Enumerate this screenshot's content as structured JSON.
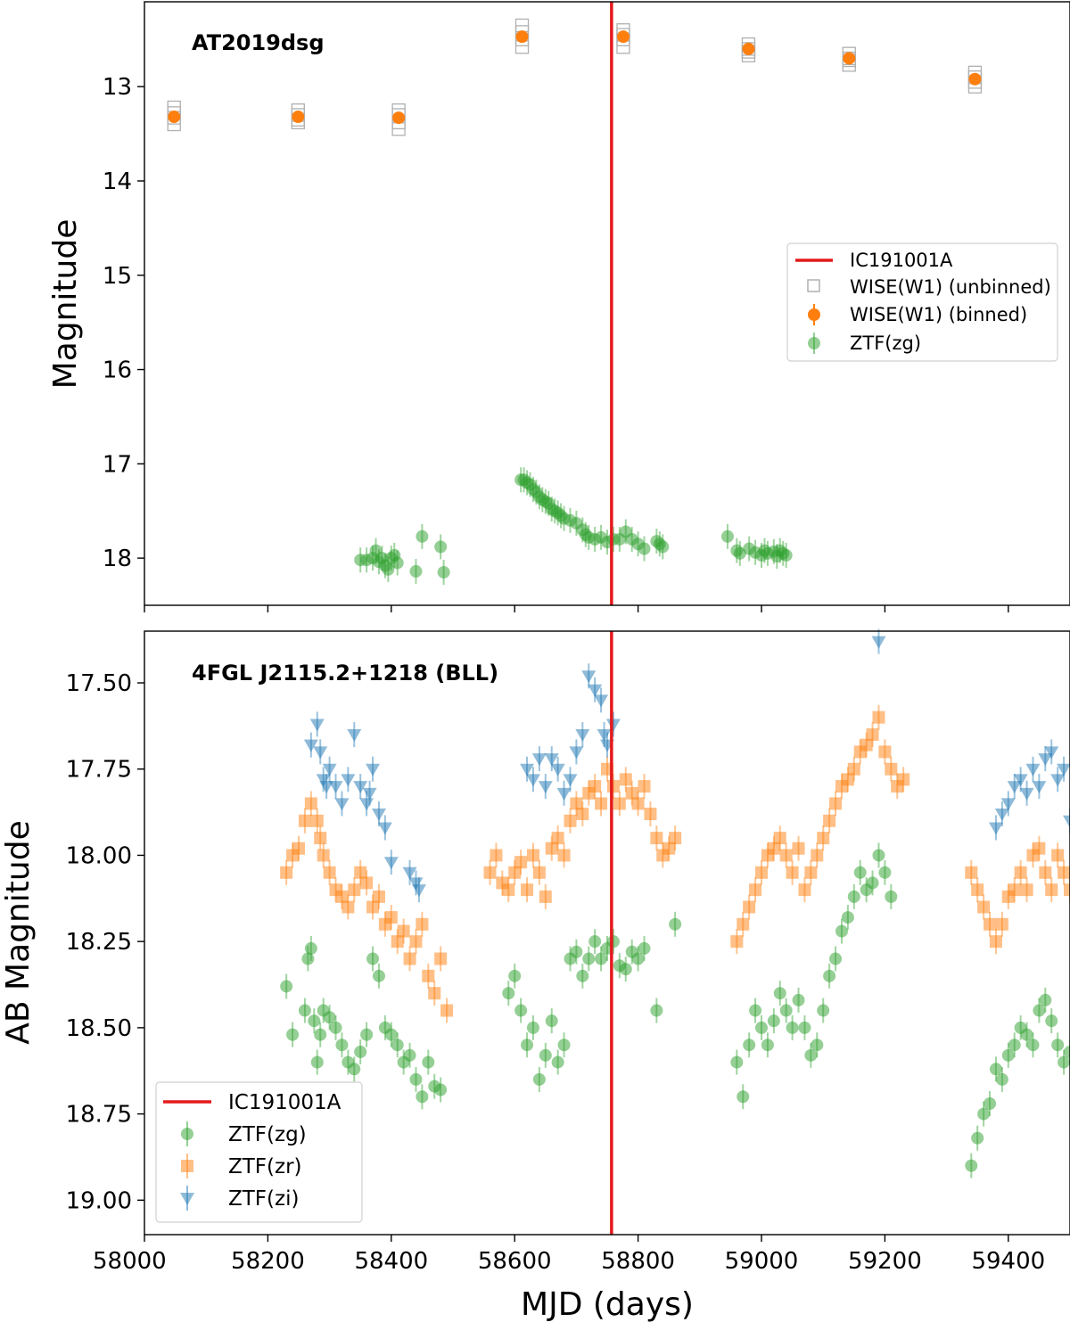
{
  "chart_data": [
    {
      "type": "scatter",
      "title": "AT2019dsg",
      "xlabel": "",
      "ylabel": "Magnitude",
      "xlim": [
        58000,
        59500
      ],
      "ylim": [
        18.5,
        12.1
      ],
      "y_inverted": true,
      "yticks": [
        13,
        14,
        15,
        16,
        17,
        18
      ],
      "ytick_labels": [
        "13",
        "14",
        "15",
        "16",
        "17",
        "18"
      ],
      "xticks": [
        58000,
        58200,
        58400,
        58600,
        58800,
        59000,
        59200,
        59400
      ],
      "legend_position": "center-right",
      "vline": {
        "name": "IC191001A",
        "x": 58757,
        "color": "#e41a1c"
      },
      "series": [
        {
          "name": "WISE(W1) (unbinned)",
          "marker": "square-open",
          "color": "#b0b0b0",
          "x": [
            58048,
            58048,
            58048,
            58048,
            58249,
            58249,
            58249,
            58249,
            58412,
            58412,
            58412,
            58412,
            58612,
            58612,
            58612,
            58612,
            58776,
            58776,
            58776,
            58776,
            58979,
            58979,
            58979,
            58979,
            59142,
            59142,
            59142,
            59142,
            59346,
            59346,
            59346,
            59346
          ],
          "y": [
            13.22,
            13.28,
            13.33,
            13.4,
            13.25,
            13.3,
            13.35,
            13.38,
            13.25,
            13.3,
            13.38,
            13.45,
            12.35,
            12.42,
            12.5,
            12.58,
            12.4,
            12.45,
            12.5,
            12.58,
            12.55,
            12.6,
            12.63,
            12.67,
            12.65,
            12.7,
            12.72,
            12.77,
            12.85,
            12.9,
            12.95,
            13.0
          ]
        },
        {
          "name": "WISE(W1) (binned)",
          "marker": "circle",
          "color": "#ff7f0e",
          "x": [
            58048,
            58249,
            58412,
            58612,
            58776,
            58979,
            59142,
            59346
          ],
          "y": [
            13.32,
            13.32,
            13.33,
            12.47,
            12.47,
            12.6,
            12.7,
            12.92
          ]
        },
        {
          "name": "ZTF(zg)",
          "marker": "circle",
          "color": "#2ca02c",
          "x": [
            58350,
            58360,
            58370,
            58375,
            58380,
            58385,
            58390,
            58395,
            58400,
            58405,
            58410,
            58440,
            58450,
            58480,
            58485,
            58610,
            58615,
            58620,
            58625,
            58630,
            58635,
            58640,
            58645,
            58650,
            58655,
            58660,
            58665,
            58670,
            58675,
            58680,
            58690,
            58700,
            58710,
            58715,
            58720,
            58730,
            58740,
            58750,
            58760,
            58770,
            58780,
            58790,
            58800,
            58810,
            58830,
            58835,
            58840,
            58945,
            58960,
            58965,
            58980,
            58990,
            59000,
            59005,
            59010,
            59020,
            59025,
            59030,
            59035,
            59040
          ],
          "y": [
            18.02,
            18.02,
            18.0,
            17.92,
            18.04,
            18.0,
            18.08,
            18.12,
            18.0,
            17.97,
            18.05,
            18.14,
            17.77,
            17.88,
            18.15,
            17.17,
            17.17,
            17.2,
            17.22,
            17.27,
            17.3,
            17.35,
            17.38,
            17.4,
            17.42,
            17.48,
            17.5,
            17.52,
            17.55,
            17.58,
            17.6,
            17.63,
            17.7,
            17.75,
            17.78,
            17.8,
            17.78,
            17.83,
            17.8,
            17.8,
            17.72,
            17.8,
            17.85,
            17.9,
            17.82,
            17.85,
            17.88,
            17.77,
            17.92,
            17.95,
            17.9,
            17.94,
            17.97,
            17.92,
            17.95,
            17.93,
            17.98,
            17.92,
            17.95,
            17.97
          ]
        }
      ]
    },
    {
      "type": "scatter",
      "title": "4FGL J2115.2+1218 (BLL)",
      "xlabel": "MJD (days)",
      "ylabel": "AB Magnitude",
      "xlim": [
        58000,
        59500
      ],
      "ylim": [
        19.1,
        17.35
      ],
      "y_inverted": true,
      "yticks": [
        17.5,
        17.75,
        18.0,
        18.25,
        18.5,
        18.75,
        19.0
      ],
      "ytick_labels": [
        "17.50",
        "17.75",
        "18.00",
        "18.25",
        "18.50",
        "18.75",
        "19.00"
      ],
      "xticks": [
        58000,
        58200,
        58400,
        58600,
        58800,
        59000,
        59200,
        59400
      ],
      "xtick_labels": [
        "58000",
        "58200",
        "58400",
        "58600",
        "58800",
        "59000",
        "59200",
        "59400"
      ],
      "legend_position": "lower-left",
      "vline": {
        "name": "IC191001A",
        "x": 58757,
        "color": "#e41a1c"
      },
      "series": [
        {
          "name": "ZTF(zg)",
          "marker": "circle",
          "color": "#2ca02c",
          "x": [
            58230,
            58240,
            58260,
            58265,
            58270,
            58275,
            58280,
            58285,
            58290,
            58300,
            58310,
            58320,
            58330,
            58340,
            58350,
            58360,
            58370,
            58380,
            58390,
            58400,
            58410,
            58420,
            58430,
            58440,
            58450,
            58460,
            58470,
            58480,
            58590,
            58600,
            58610,
            58620,
            58630,
            58640,
            58650,
            58660,
            58670,
            58680,
            58690,
            58700,
            58710,
            58720,
            58730,
            58740,
            58750,
            58760,
            58770,
            58780,
            58790,
            58800,
            58810,
            58830,
            58860,
            58960,
            58970,
            58980,
            58990,
            59000,
            59010,
            59020,
            59030,
            59040,
            59050,
            59060,
            59070,
            59080,
            59090,
            59100,
            59110,
            59120,
            59130,
            59140,
            59150,
            59160,
            59170,
            59180,
            59190,
            59200,
            59210,
            59340,
            59350,
            59360,
            59370,
            59380,
            59390,
            59400,
            59410,
            59420,
            59430,
            59440,
            59450,
            59460,
            59470,
            59480,
            59490,
            59500
          ],
          "y": [
            18.38,
            18.52,
            18.45,
            18.3,
            18.27,
            18.48,
            18.6,
            18.52,
            18.45,
            18.47,
            18.5,
            18.55,
            18.6,
            18.62,
            18.57,
            18.52,
            18.3,
            18.35,
            18.5,
            18.52,
            18.55,
            18.6,
            18.58,
            18.65,
            18.7,
            18.6,
            18.67,
            18.68,
            18.4,
            18.35,
            18.45,
            18.55,
            18.5,
            18.65,
            18.58,
            18.48,
            18.6,
            18.55,
            18.3,
            18.28,
            18.35,
            18.3,
            18.25,
            18.3,
            18.27,
            18.25,
            18.32,
            18.33,
            18.28,
            18.3,
            18.27,
            18.45,
            18.2,
            18.6,
            18.7,
            18.55,
            18.45,
            18.5,
            18.55,
            18.48,
            18.4,
            18.45,
            18.5,
            18.42,
            18.5,
            18.58,
            18.55,
            18.45,
            18.35,
            18.3,
            18.22,
            18.18,
            18.12,
            18.05,
            18.1,
            18.08,
            18.0,
            18.05,
            18.12,
            18.9,
            18.82,
            18.75,
            18.72,
            18.62,
            18.65,
            18.58,
            18.55,
            18.5,
            18.52,
            18.55,
            18.45,
            18.42,
            18.48,
            18.55,
            18.6,
            18.57
          ]
        },
        {
          "name": "ZTF(zr)",
          "marker": "square",
          "color": "#ff7f0e",
          "x": [
            58230,
            58240,
            58250,
            58260,
            58270,
            58280,
            58285,
            58290,
            58300,
            58310,
            58320,
            58330,
            58340,
            58350,
            58360,
            58370,
            58380,
            58390,
            58400,
            58410,
            58420,
            58430,
            58440,
            58450,
            58460,
            58470,
            58480,
            58490,
            58560,
            58570,
            58580,
            58590,
            58600,
            58610,
            58620,
            58630,
            58640,
            58650,
            58660,
            58670,
            58680,
            58690,
            58700,
            58710,
            58720,
            58730,
            58740,
            58750,
            58760,
            58770,
            58780,
            58790,
            58800,
            58810,
            58820,
            58830,
            58840,
            58850,
            58860,
            58960,
            58970,
            58980,
            58990,
            59000,
            59010,
            59020,
            59030,
            59040,
            59050,
            59060,
            59070,
            59080,
            59090,
            59100,
            59110,
            59120,
            59130,
            59140,
            59150,
            59160,
            59170,
            59180,
            59190,
            59200,
            59210,
            59220,
            59230,
            59340,
            59350,
            59360,
            59370,
            59380,
            59390,
            59400,
            59410,
            59420,
            59430,
            59440,
            59450,
            59460,
            59470,
            59480,
            59490,
            59500
          ],
          "y": [
            18.05,
            18.0,
            17.98,
            17.9,
            17.85,
            17.9,
            17.95,
            18.0,
            18.05,
            18.1,
            18.12,
            18.15,
            18.1,
            18.05,
            18.08,
            18.15,
            18.12,
            18.2,
            18.18,
            18.25,
            18.22,
            18.3,
            18.25,
            18.2,
            18.35,
            18.4,
            18.3,
            18.45,
            18.05,
            18.0,
            18.08,
            18.1,
            18.05,
            18.02,
            18.1,
            18.0,
            18.05,
            18.12,
            17.98,
            17.95,
            18.0,
            17.9,
            17.85,
            17.88,
            17.82,
            17.8,
            17.85,
            17.75,
            17.8,
            17.85,
            17.78,
            17.82,
            17.85,
            17.8,
            17.88,
            17.95,
            18.0,
            17.98,
            17.95,
            18.25,
            18.2,
            18.15,
            18.1,
            18.05,
            18.0,
            17.98,
            17.95,
            18.0,
            18.05,
            17.98,
            18.1,
            18.05,
            18.0,
            17.95,
            17.9,
            17.85,
            17.8,
            17.78,
            17.75,
            17.7,
            17.68,
            17.65,
            17.6,
            17.7,
            17.75,
            17.8,
            17.78,
            18.05,
            18.1,
            18.15,
            18.2,
            18.25,
            18.2,
            18.12,
            18.1,
            18.05,
            18.1,
            18.0,
            17.98,
            18.05,
            18.1,
            18.0,
            18.05,
            18.1
          ]
        },
        {
          "name": "ZTF(zi)",
          "marker": "triangle-down",
          "color": "#1f77b4",
          "x": [
            58270,
            58280,
            58285,
            58290,
            58295,
            58300,
            58310,
            58320,
            58330,
            58340,
            58350,
            58360,
            58365,
            58370,
            58380,
            58390,
            58400,
            58430,
            58440,
            58445,
            58620,
            58630,
            58640,
            58650,
            58660,
            58670,
            58680,
            58690,
            58700,
            58710,
            58720,
            58730,
            58740,
            58745,
            58750,
            58760,
            59190,
            59380,
            59390,
            59400,
            59410,
            59420,
            59430,
            59440,
            59450,
            59460,
            59470,
            59480,
            59490,
            59500
          ],
          "y": [
            17.68,
            17.62,
            17.7,
            17.78,
            17.8,
            17.75,
            17.8,
            17.85,
            17.78,
            17.65,
            17.8,
            17.85,
            17.82,
            17.75,
            17.88,
            17.92,
            18.02,
            18.05,
            18.08,
            18.1,
            17.75,
            17.78,
            17.72,
            17.8,
            17.72,
            17.75,
            17.82,
            17.78,
            17.7,
            17.65,
            17.48,
            17.52,
            17.55,
            17.65,
            17.68,
            17.62,
            17.38,
            17.92,
            17.88,
            17.85,
            17.8,
            17.78,
            17.82,
            17.75,
            17.8,
            17.72,
            17.7,
            17.78,
            17.75,
            17.9
          ]
        }
      ]
    }
  ]
}
